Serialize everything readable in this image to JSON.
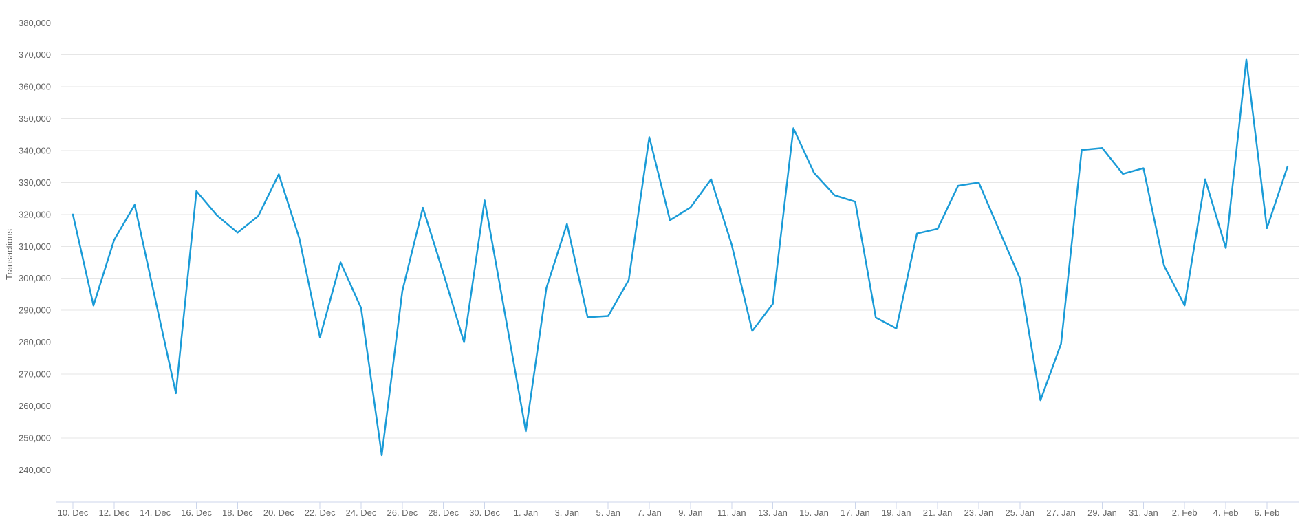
{
  "page": {
    "background": "#ffffff"
  },
  "chart_data": {
    "type": "line",
    "title": "",
    "subtitle": "",
    "xlabel": "",
    "ylabel": "Transactions",
    "series_name": "Transactions",
    "legend": "none",
    "grid": true,
    "x_tick_interval": 2,
    "ylim": [
      240000,
      380000
    ],
    "y_tick_step": 10000,
    "y_tick_labels": [
      "240,000",
      "250,000",
      "260,000",
      "270,000",
      "280,000",
      "290,000",
      "300,000",
      "310,000",
      "320,000",
      "330,000",
      "340,000",
      "350,000",
      "360,000",
      "370,000",
      "380,000"
    ],
    "x_tick_labels_shown": [
      "10. Dec",
      "12. Dec",
      "14. Dec",
      "16. Dec",
      "18. Dec",
      "20. Dec",
      "22. Dec",
      "24. Dec",
      "26. Dec",
      "28. Dec",
      "30. Dec",
      "1. Jan",
      "3. Jan",
      "5. Jan",
      "7. Jan",
      "9. Jan",
      "11. Jan",
      "13. Jan",
      "15. Jan",
      "17. Jan",
      "19. Jan",
      "21. Jan",
      "23. Jan",
      "25. Jan",
      "27. Jan",
      "29. Jan",
      "31. Jan",
      "2. Feb",
      "4. Feb",
      "6. Feb"
    ],
    "categories": [
      "10. Dec",
      "11. Dec",
      "12. Dec",
      "13. Dec",
      "14. Dec",
      "15. Dec",
      "16. Dec",
      "17. Dec",
      "18. Dec",
      "19. Dec",
      "20. Dec",
      "21. Dec",
      "22. Dec",
      "23. Dec",
      "24. Dec",
      "25. Dec",
      "26. Dec",
      "27. Dec",
      "28. Dec",
      "29. Dec",
      "30. Dec",
      "31. Dec",
      "1. Jan",
      "2. Jan",
      "3. Jan",
      "4. Jan",
      "5. Jan",
      "6. Jan",
      "7. Jan",
      "8. Jan",
      "9. Jan",
      "10. Jan",
      "11. Jan",
      "12. Jan",
      "13. Jan",
      "14. Jan",
      "15. Jan",
      "16. Jan",
      "17. Jan",
      "18. Jan",
      "19. Jan",
      "20. Jan",
      "21. Jan",
      "22. Jan",
      "23. Jan",
      "24. Jan",
      "25. Jan",
      "26. Jan",
      "27. Jan",
      "28. Jan",
      "29. Jan",
      "30. Jan",
      "31. Jan",
      "1. Feb",
      "2. Feb",
      "3. Feb",
      "4. Feb",
      "5. Feb",
      "6. Feb",
      "7. Feb"
    ],
    "values": [
      320000,
      291500,
      312000,
      323000,
      293500,
      264000,
      327300,
      319700,
      314300,
      319500,
      332600,
      312500,
      281500,
      305000,
      290700,
      244600,
      296000,
      322100,
      301500,
      280000,
      324400,
      288500,
      252100,
      297000,
      317000,
      287800,
      288200,
      299500,
      344200,
      318200,
      322200,
      331000,
      310500,
      283500,
      292000,
      347000,
      333000,
      326000,
      324000,
      287700,
      284300,
      314000,
      315500,
      329000,
      330000,
      315000,
      300000,
      261800,
      279500,
      340200,
      340800,
      332700,
      334500,
      304000,
      291500,
      331000,
      309500,
      368500,
      315700,
      335000
    ],
    "colors": {
      "series": "#1a9bd7",
      "grid": "#e6e6e6",
      "axis": "#ccd6eb",
      "labels": "#666666"
    }
  }
}
